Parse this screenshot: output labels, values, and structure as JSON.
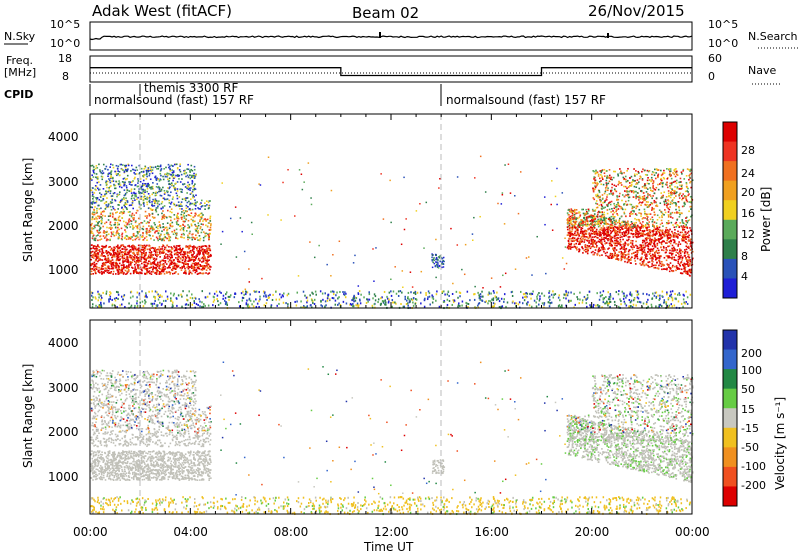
{
  "header": {
    "title_left": "Adak West (fitACF)",
    "title_center": "Beam 02",
    "title_right": "26/Nov/2015"
  },
  "noise_panel": {
    "left_label": "N.Sky",
    "left_ticks": [
      "10^5",
      "10^0"
    ],
    "right_ticks": [
      "10^5",
      "10^0"
    ],
    "right_label": "N.Search"
  },
  "freq_panel": {
    "left_label_top": "Freq.",
    "left_label_unit": "[MHz]",
    "left_ticks": [
      "18",
      "8"
    ],
    "right_ticks": [
      "60",
      "0"
    ],
    "right_label": "Nave"
  },
  "cpid_panel": {
    "label": "CPID",
    "segments": [
      {
        "text": "normalsound (fast) 157 RF",
        "start_h": 0.0
      },
      {
        "text": "themis 3300 RF",
        "start_h": 2.0
      },
      {
        "text": "normalsound (fast) 157 RF",
        "start_h": 14.0
      }
    ]
  },
  "power_panel": {
    "ylabel": "Slant Range [km]",
    "yticks": [
      "1000",
      "2000",
      "3000",
      "4000"
    ],
    "colorbar_label": "Power [dB]",
    "colorbar_ticks": [
      "4",
      "8",
      "12",
      "16",
      "20",
      "24",
      "28"
    ],
    "colors": [
      "#1f1fd6",
      "#2a52b8",
      "#2e7f4a",
      "#5aaa5a",
      "#f0d020",
      "#f0a020",
      "#f07020",
      "#ee3322",
      "#dd0000"
    ]
  },
  "velocity_panel": {
    "ylabel": "Slant Range [km]",
    "yticks": [
      "1000",
      "2000",
      "3000",
      "4000"
    ],
    "colorbar_label": "Velocity [m s⁻¹]",
    "colorbar_ticks": [
      "200",
      "100",
      "50",
      "15",
      "-15",
      "-50",
      "-100",
      "-200"
    ],
    "colors": [
      "#2233aa",
      "#3366cc",
      "#228844",
      "#66cc44",
      "#c8c8c0",
      "#f0c020",
      "#f09020",
      "#f05020",
      "#dd0000"
    ],
    "ground_scatter_color": "#c0c0b8"
  },
  "x_axis": {
    "label": "Time UT",
    "ticks": [
      "00:00",
      "04:00",
      "08:00",
      "12:00",
      "16:00",
      "20:00",
      "00:00"
    ]
  },
  "chart_data": {
    "type": "heatmap",
    "x_range_hours": [
      0,
      24
    ],
    "y_range_km": [
      180,
      4500
    ],
    "scatter_regions": [
      {
        "name": "",
        "t_start": 0.0,
        "t_end": 4.8,
        "range_km": [
          900,
          3400
        ]
      },
      {
        "name": "",
        "t_start": 13.5,
        "t_end": 14.2,
        "range_km": [
          1100,
          1400
        ]
      },
      {
        "name": "",
        "t_start": 19.0,
        "t_end": 24.0,
        "range_km": [
          900,
          3300
        ]
      },
      {
        "name": "",
        "t_start": 0.0,
        "t_end": 24.0,
        "range_km": [
          180,
          600
        ]
      }
    ],
    "freq_mhz": [
      {
        "t_start": 0,
        "t_end": 10,
        "value": 13.5
      },
      {
        "t_start": 10,
        "t_end": 18,
        "value": 10.5
      },
      {
        "t_start": 18,
        "t_end": 24,
        "value": 13.5
      }
    ]
  }
}
